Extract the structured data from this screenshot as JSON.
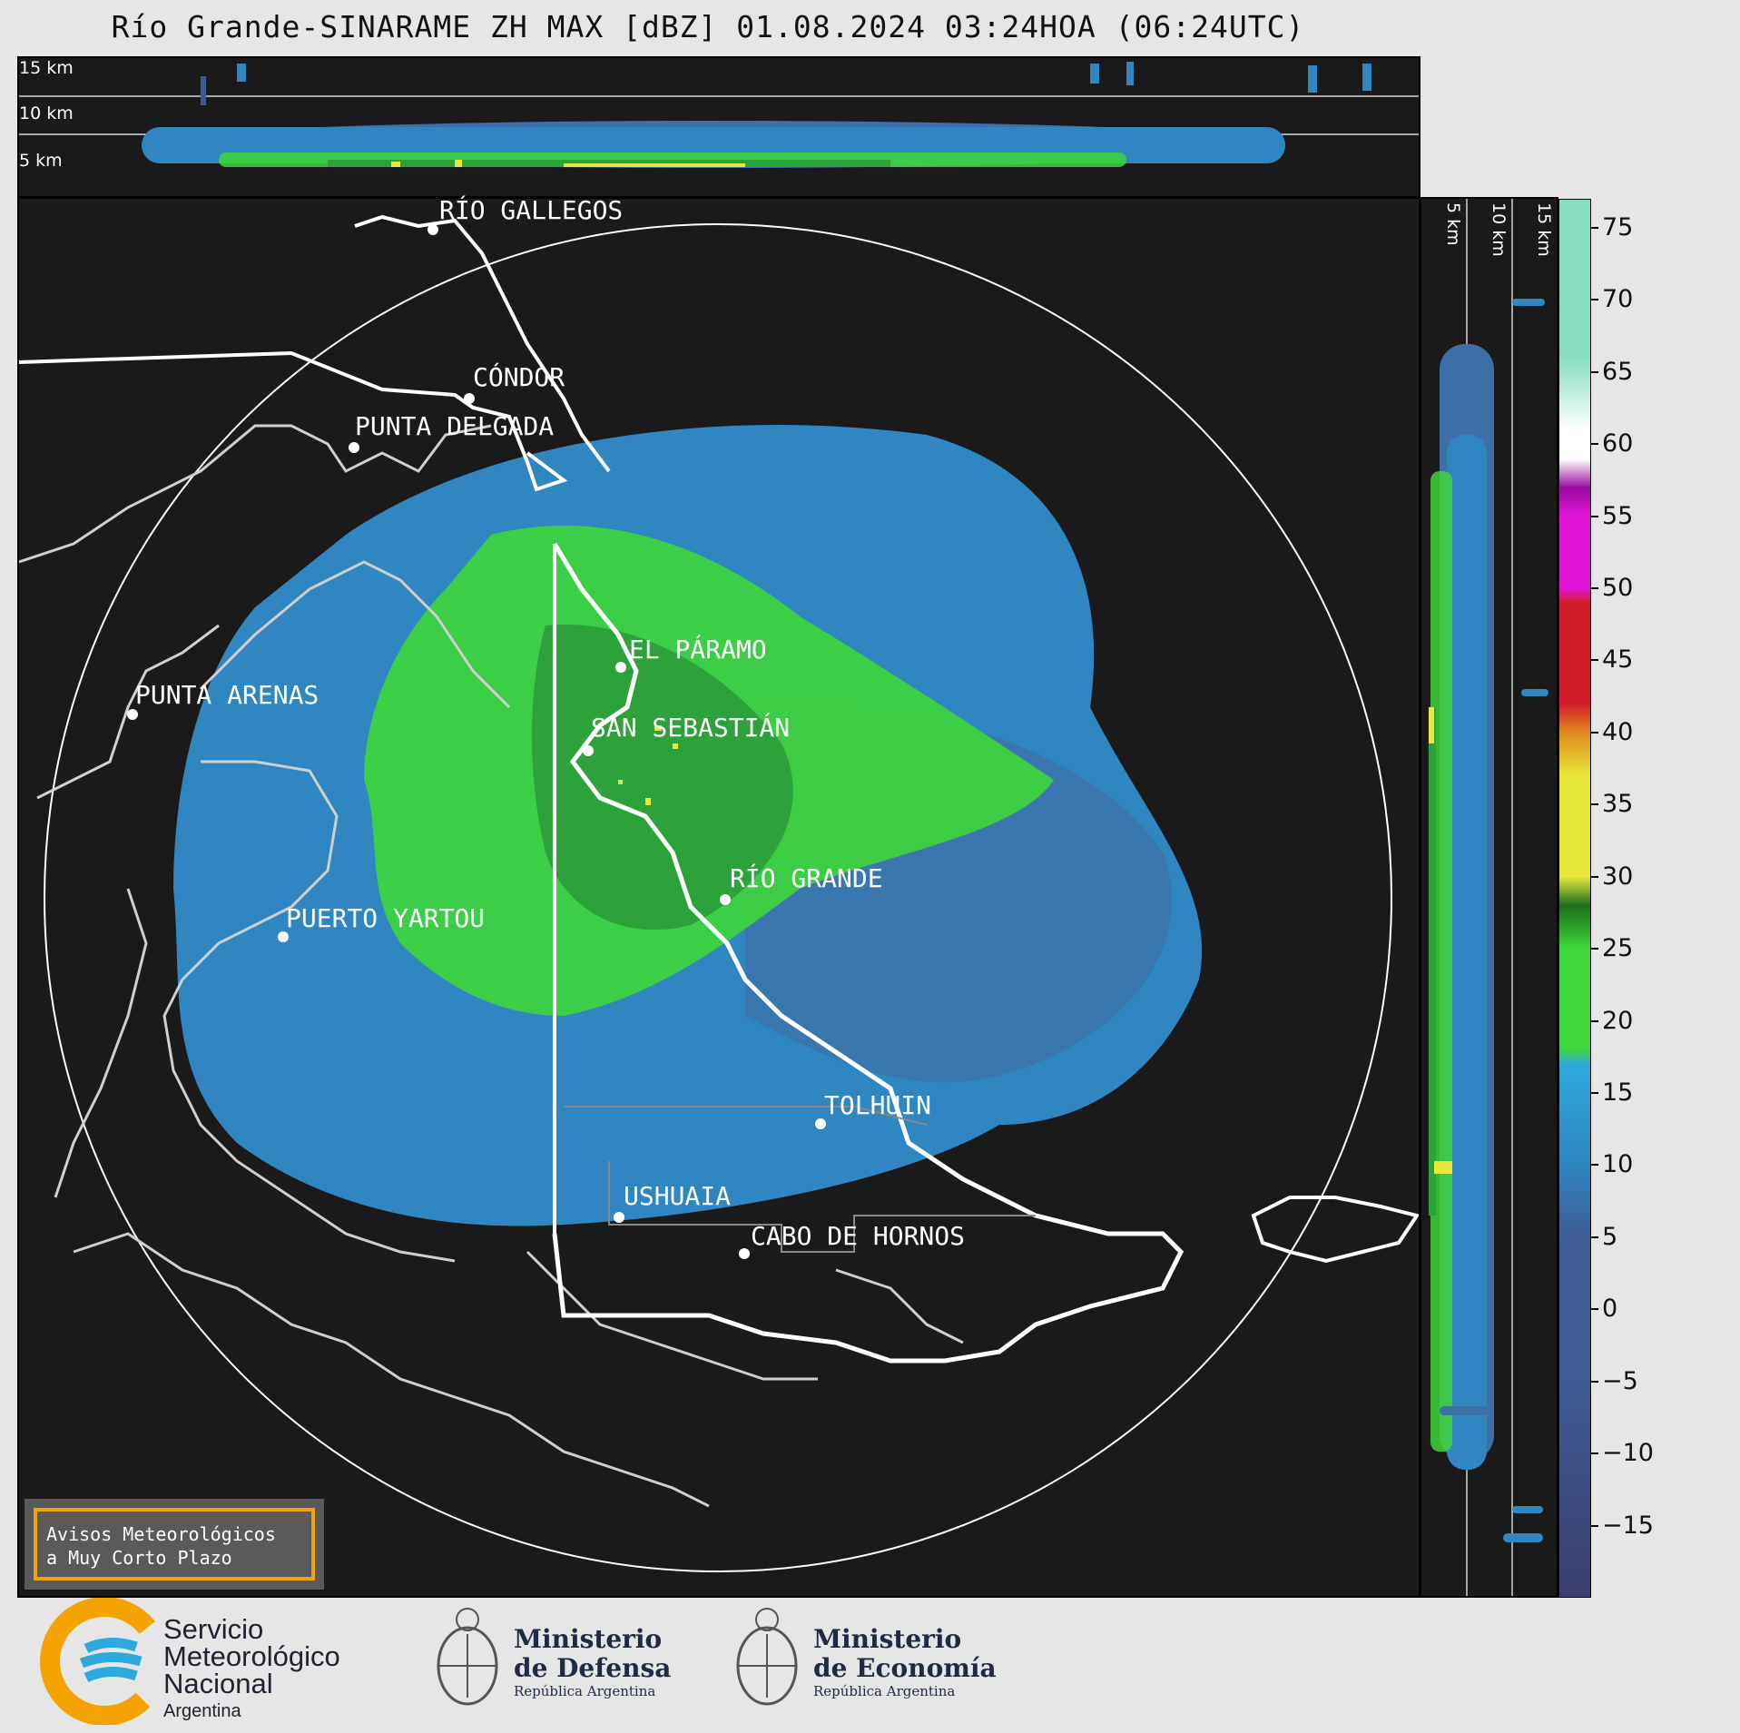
{
  "title": "Río Grande-SINARAME ZH MAX [dBZ] 01.08.2024 03:24HOA (06:24UTC)",
  "top_panel": {
    "altitude_labels": [
      "15 km",
      "10 km",
      "5 km"
    ]
  },
  "side_panel": {
    "altitude_labels": [
      "5 km",
      "10 km",
      "15 km"
    ]
  },
  "cities": [
    {
      "name": "RÍO GALLEGOS"
    },
    {
      "name": "CÓNDOR"
    },
    {
      "name": "PUNTA DELGADA"
    },
    {
      "name": "EL PÁRAMO"
    },
    {
      "name": "SAN SEBASTIÁN"
    },
    {
      "name": "PUNTA ARENAS"
    },
    {
      "name": "RÍO GRANDE"
    },
    {
      "name": "PUERTO YARTOU"
    },
    {
      "name": "TOLHUIN"
    },
    {
      "name": "USHUAIA"
    },
    {
      "name": "CABO DE HORNOS"
    }
  ],
  "colorbar": {
    "unit": "dBZ",
    "ticks": [
      "75",
      "70",
      "65",
      "60",
      "55",
      "50",
      "45",
      "40",
      "35",
      "30",
      "25",
      "20",
      "15",
      "10",
      "5",
      "0",
      "−5",
      "−10",
      "−15"
    ],
    "range": [
      -20,
      77
    ],
    "colors": {
      "very_low": "#3b3f6e",
      "low": "#3e5b94",
      "mid_blue": "#2f86c0",
      "light_blue": "#2ea9dc",
      "green": "#3ed63a",
      "dark_green": "#1e6e1e",
      "yellow": "#e8e83a",
      "orange": "#e08a1e",
      "red": "#d21c2a",
      "magenta": "#e015d8",
      "purple": "#9a0aa0",
      "white": "#ffffff",
      "mint": "#88dcc0"
    }
  },
  "notice": {
    "line1": "Avisos Meteorológicos",
    "line2": "a Muy Corto Plazo"
  },
  "logos": {
    "smn": {
      "line1": "Servicio",
      "line2": "Meteorológico",
      "line3": "Nacional",
      "line4": "Argentina"
    },
    "defensa": {
      "line1": "Ministerio",
      "line2": "de Defensa",
      "line3": "República Argentina"
    },
    "economia": {
      "line1": "Ministerio",
      "line2": "de Economía",
      "line3": "República Argentina"
    }
  }
}
